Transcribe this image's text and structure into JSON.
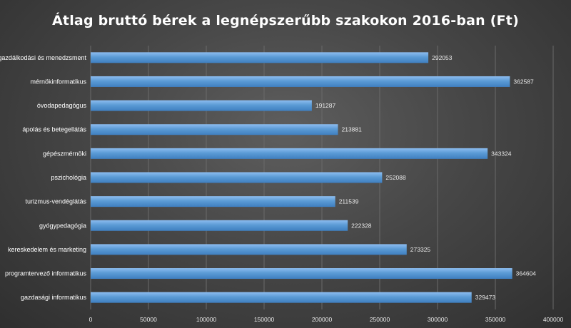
{
  "chart_data": {
    "type": "bar",
    "orientation": "horizontal",
    "title": "Átlag bruttó bérek a legnépszerűbb szakokon 2016-ban (Ft)",
    "categories": [
      "gazdálkodási és menedzsment",
      "mérnökinformatikus",
      "óvodapedagógus",
      "ápolás és betegellátás",
      "gépészmérnöki",
      "pszichológia",
      "turizmus-vendéglátás",
      "gyógypedagógia",
      "kereskedelem és marketing",
      "programtervező informatikus",
      "gazdasági informatikus"
    ],
    "values": [
      292053,
      362587,
      191287,
      213881,
      343324,
      252088,
      211539,
      222328,
      273325,
      364604,
      329473
    ],
    "value_labels": [
      "292053",
      "362587",
      "191287",
      "213881",
      "343324",
      "252088",
      "211539",
      "222328",
      "273325",
      "364604",
      "329473"
    ],
    "xlim": [
      0,
      400000
    ],
    "x_ticks": [
      0,
      50000,
      100000,
      150000,
      200000,
      250000,
      300000,
      350000,
      400000
    ],
    "x_tick_labels": [
      "0",
      "50000",
      "100000",
      "150000",
      "200000",
      "250000",
      "300000",
      "350000",
      "400000"
    ],
    "grid": true,
    "legend": "none",
    "bar_color": "#5b9bd5",
    "background_color": "#404040"
  }
}
